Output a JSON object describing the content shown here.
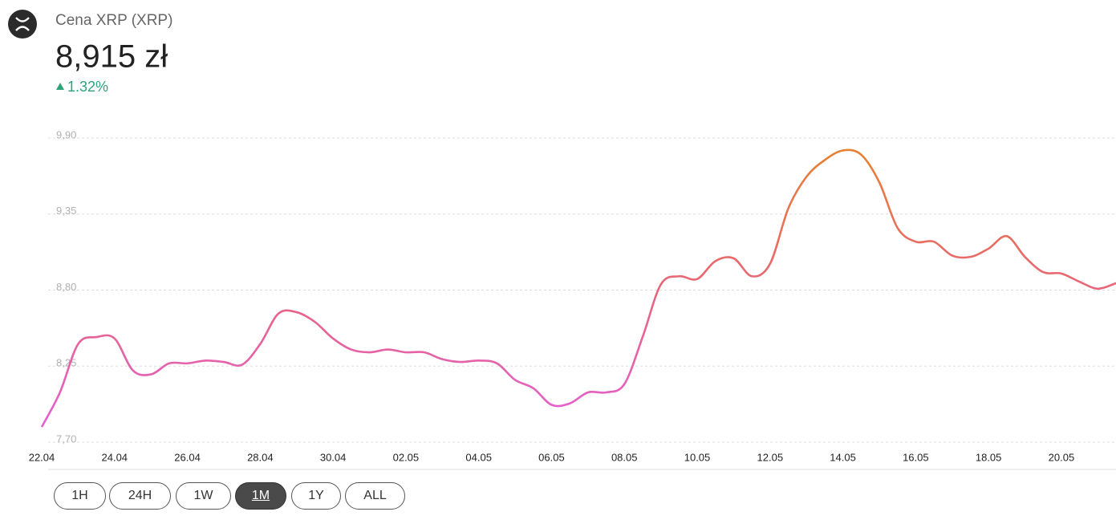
{
  "header": {
    "asset": "Cena XRP (XRP)",
    "price": "8,915 zł",
    "change": "1.32%",
    "change_direction": "up"
  },
  "chart_data": {
    "type": "line",
    "categories": [
      "22.04",
      null,
      null,
      null,
      "24.04",
      null,
      null,
      null,
      "26.04",
      null,
      null,
      null,
      "28.04",
      null,
      null,
      null,
      "30.04",
      null,
      null,
      null,
      "02.05",
      null,
      null,
      null,
      "04.05",
      null,
      null,
      null,
      "06.05",
      null,
      null,
      null,
      "08.05",
      null,
      null,
      null,
      "10.05",
      null,
      null,
      null,
      "12.05",
      null,
      null,
      null,
      "14.05",
      null,
      null,
      null,
      "16.05",
      null,
      null,
      null,
      "18.05",
      null,
      null,
      null,
      "20.05",
      null,
      null,
      null
    ],
    "series": [
      {
        "name": "XRP",
        "colors": [
          "#e25ee0",
          "#e8657a",
          "#e8822a"
        ],
        "values": [
          7.81,
          8.06,
          8.41,
          8.46,
          8.45,
          8.22,
          8.19,
          8.27,
          8.27,
          8.29,
          8.28,
          8.26,
          8.41,
          8.63,
          8.64,
          8.57,
          8.45,
          8.37,
          8.35,
          8.37,
          8.35,
          8.35,
          8.3,
          8.28,
          8.29,
          8.27,
          8.15,
          8.09,
          7.97,
          7.98,
          8.06,
          8.06,
          8.12,
          8.46,
          8.84,
          8.9,
          8.88,
          9.01,
          9.03,
          8.9,
          8.99,
          9.39,
          9.62,
          9.74,
          9.81,
          9.78,
          9.58,
          9.25,
          9.15,
          9.15,
          9.05,
          9.04,
          9.1,
          9.19,
          9.04,
          8.93,
          8.92,
          8.86,
          8.81,
          8.85
        ]
      }
    ],
    "ylim": [
      7.7,
      9.9
    ],
    "yticks": [
      {
        "value": 7.7,
        "label": "7,70"
      },
      {
        "value": 8.25,
        "label": "8,25"
      },
      {
        "value": 8.8,
        "label": "8,80"
      },
      {
        "value": 9.35,
        "label": "9,35"
      },
      {
        "value": 9.9,
        "label": "9,90"
      }
    ],
    "grid": true
  },
  "range_buttons": [
    "1H",
    "24H",
    "1W",
    "1M",
    "1Y",
    "ALL"
  ],
  "active_index": 3
}
